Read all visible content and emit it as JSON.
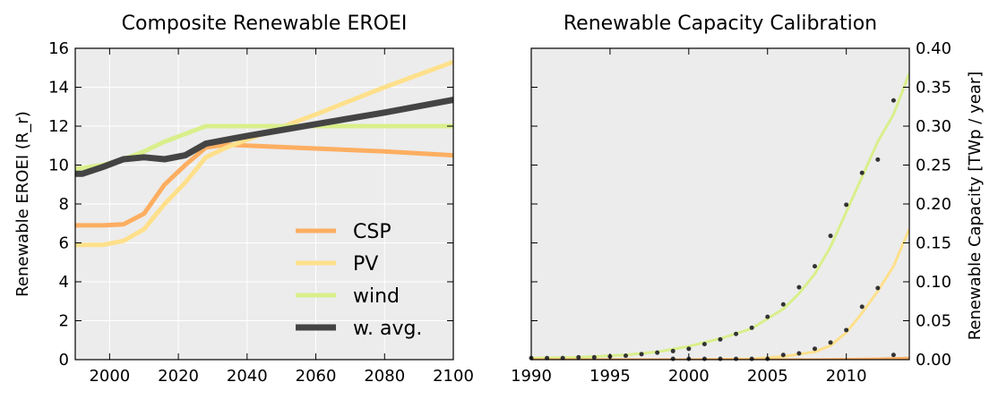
{
  "chart_data": [
    {
      "type": "line",
      "title": "Composite Renewable EROEI",
      "ylabel": "Renewable EROEI (R_r)",
      "xlabel": "",
      "xlim": [
        1990,
        2100
      ],
      "ylim": [
        0,
        16
      ],
      "xticks": [
        "2000",
        "2020",
        "2040",
        "2060",
        "2080",
        "2100"
      ],
      "xtick_values": [
        2000,
        2020,
        2040,
        2060,
        2080,
        2100
      ],
      "yticks": [
        "0",
        "2",
        "4",
        "6",
        "8",
        "10",
        "12",
        "14",
        "16"
      ],
      "ytick_values": [
        0,
        2,
        4,
        6,
        8,
        10,
        12,
        14,
        16
      ],
      "grid": true,
      "legend_position": "lower-right",
      "series": [
        {
          "name": "CSP",
          "color": "#fdae61",
          "width": 5,
          "x": [
            1990,
            1998,
            2004,
            2010,
            2016,
            2022,
            2028,
            2034,
            2040,
            2060,
            2080,
            2100
          ],
          "y": [
            6.9,
            6.9,
            6.95,
            7.5,
            9.0,
            10.0,
            10.9,
            11.05,
            11.0,
            10.85,
            10.7,
            10.5
          ]
        },
        {
          "name": "PV",
          "color": "#fee08b",
          "width": 5,
          "x": [
            1990,
            1998,
            2004,
            2010,
            2016,
            2022,
            2028,
            2034,
            2040,
            2060,
            2080,
            2100
          ],
          "y": [
            5.9,
            5.9,
            6.1,
            6.7,
            8.0,
            9.1,
            10.4,
            10.9,
            11.3,
            12.6,
            14.0,
            15.3
          ]
        },
        {
          "name": "wind",
          "color": "#d9ef8b",
          "width": 5,
          "x": [
            1990,
            1998,
            2004,
            2010,
            2016,
            2022,
            2028,
            2034,
            2040,
            2060,
            2080,
            2100
          ],
          "y": [
            9.8,
            10.0,
            10.3,
            10.7,
            11.2,
            11.6,
            12.0,
            12.0,
            12.0,
            12.0,
            12.0,
            12.0
          ]
        },
        {
          "name": "w. avg.",
          "color": "#444444",
          "width": 7,
          "x": [
            1990,
            1992,
            1998,
            2004,
            2010,
            2016,
            2022,
            2028,
            2034,
            2040,
            2060,
            2080,
            2100
          ],
          "y": [
            9.55,
            9.55,
            9.9,
            10.3,
            10.4,
            10.3,
            10.5,
            11.1,
            11.3,
            11.5,
            12.1,
            12.7,
            13.35
          ]
        }
      ]
    },
    {
      "type": "line",
      "title": "Renewable Capacity Calibration",
      "ylabel": "Renewable Capacity [TWp / year]",
      "xlabel": "",
      "xlim": [
        1990,
        2014
      ],
      "ylim": [
        0,
        0.4
      ],
      "xticks": [
        "1990",
        "1995",
        "2000",
        "2005",
        "2010"
      ],
      "xtick_values": [
        1990,
        1995,
        2000,
        2005,
        2010
      ],
      "yticks": [
        "0.00",
        "0.05",
        "0.10",
        "0.15",
        "0.20",
        "0.25",
        "0.30",
        "0.35",
        "0.40"
      ],
      "ytick_values": [
        0,
        0.05,
        0.1,
        0.15,
        0.2,
        0.25,
        0.3,
        0.35,
        0.4
      ],
      "yaxis_side": "right",
      "grid": false,
      "series": [
        {
          "name": "",
          "color": "#d9ef8b",
          "width": 3,
          "x": [
            1990,
            1993,
            1996,
            1998,
            2000,
            2002,
            2004,
            2006,
            2007,
            2008,
            2009,
            2010,
            2011,
            2012,
            2013,
            2014
          ],
          "y": [
            0.002,
            0.003,
            0.006,
            0.01,
            0.017,
            0.027,
            0.04,
            0.065,
            0.085,
            0.11,
            0.145,
            0.19,
            0.235,
            0.28,
            0.315,
            0.368
          ]
        },
        {
          "name": "",
          "color": "#fee08b",
          "width": 3,
          "x": [
            1990,
            2000,
            2004,
            2006,
            2008,
            2009,
            2010,
            2011,
            2012,
            2013,
            2014
          ],
          "y": [
            0.0,
            0.0,
            0.001,
            0.004,
            0.01,
            0.018,
            0.035,
            0.06,
            0.088,
            0.12,
            0.168
          ]
        },
        {
          "name": "",
          "color": "#fdae61",
          "width": 3,
          "x": [
            1990,
            2008,
            2012,
            2014
          ],
          "y": [
            0.0,
            0.0,
            0.001,
            0.002
          ]
        },
        {
          "name": "",
          "type": "scatter",
          "color": "#333333",
          "marker_size": 2.5,
          "x": [
            1990,
            1991,
            1992,
            1993,
            1994,
            1995,
            1996,
            1997,
            1998,
            1999,
            2000,
            2001,
            2002,
            2003,
            2004,
            2005,
            2006,
            2007,
            2008,
            2009,
            2010,
            2011,
            2012,
            2013
          ],
          "y": [
            0.002,
            0.002,
            0.002,
            0.003,
            0.003,
            0.004,
            0.005,
            0.007,
            0.009,
            0.011,
            0.014,
            0.02,
            0.026,
            0.033,
            0.041,
            0.055,
            0.071,
            0.093,
            0.12,
            0.159,
            0.199,
            0.24,
            0.257,
            0.333
          ]
        },
        {
          "name": "",
          "type": "scatter",
          "color": "#333333",
          "marker_size": 2.5,
          "x": [
            2006,
            2007,
            2008,
            2009,
            2010,
            2011,
            2012,
            2013
          ],
          "y": [
            0.006,
            0.008,
            0.014,
            0.022,
            0.038,
            0.068,
            0.092,
            0.006
          ]
        },
        {
          "name": "",
          "type": "scatter",
          "color": "#333333",
          "marker_size": 2.5,
          "x": [
            1999,
            2000,
            2001,
            2002,
            2003,
            2004,
            2005
          ],
          "y": [
            0.001,
            0.001,
            0.001,
            0.001,
            0.001,
            0.001,
            0.001
          ]
        }
      ]
    }
  ]
}
